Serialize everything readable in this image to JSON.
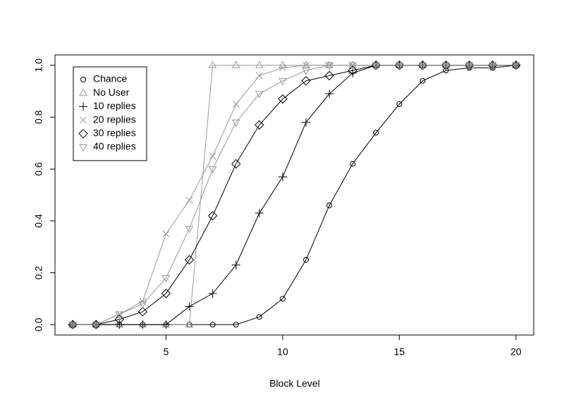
{
  "chart_data": {
    "type": "line",
    "x_label": "Block Level",
    "x": [
      1,
      2,
      3,
      4,
      5,
      6,
      7,
      8,
      9,
      10,
      11,
      12,
      13,
      14,
      15,
      16,
      17,
      18,
      19,
      20
    ],
    "xlim": [
      0.24,
      20.76
    ],
    "xticks": [
      5,
      10,
      15,
      20
    ],
    "ylim": [
      -0.04,
      1.04
    ],
    "yticks": [
      {
        "value": 0,
        "label": "0.0"
      },
      {
        "value": 0.2,
        "label": "0.2"
      },
      {
        "value": 0.4,
        "label": "0.4"
      },
      {
        "value": 0.6,
        "label": "0.6"
      },
      {
        "value": 0.8,
        "label": "0.8"
      },
      {
        "value": 1,
        "label": "1.0"
      }
    ],
    "legend": "top-left",
    "series": [
      {
        "name": "Chance",
        "color": "#000000",
        "marker": "circle",
        "values": [
          0,
          0,
          0,
          0,
          0,
          0,
          0,
          0,
          0.03,
          0.1,
          0.25,
          0.46,
          0.62,
          0.74,
          0.85,
          0.94,
          0.98,
          0.99,
          0.99,
          1
        ]
      },
      {
        "name": "No User",
        "color": "#999999",
        "marker": "triangle",
        "values": [
          0,
          0,
          0,
          0,
          0,
          0,
          1,
          1,
          1,
          1,
          1,
          1,
          1,
          1,
          1,
          1,
          1,
          1,
          1,
          1
        ]
      },
      {
        "name": "10 replies",
        "color": "#000000",
        "marker": "plus",
        "values": [
          0,
          0,
          0,
          0,
          0,
          0.07,
          0.12,
          0.23,
          0.43,
          0.57,
          0.78,
          0.89,
          0.97,
          1,
          1,
          1,
          1,
          1,
          1,
          1
        ]
      },
      {
        "name": "20 replies",
        "color": "#999999",
        "marker": "cross",
        "values": [
          0,
          0,
          0.04,
          0.09,
          0.35,
          0.48,
          0.65,
          0.85,
          0.96,
          0.99,
          1,
          1,
          1,
          1,
          1,
          1,
          1,
          1,
          1,
          1
        ]
      },
      {
        "name": "30 replies",
        "color": "#000000",
        "marker": "diamond",
        "values": [
          0,
          0,
          0.02,
          0.05,
          0.12,
          0.25,
          0.42,
          0.62,
          0.77,
          0.87,
          0.94,
          0.96,
          0.98,
          1,
          1,
          1,
          1,
          1,
          1,
          1
        ]
      },
      {
        "name": "40 replies",
        "color": "#999999",
        "marker": "triangle-down",
        "values": [
          0,
          0,
          0.04,
          0.08,
          0.18,
          0.37,
          0.6,
          0.78,
          0.89,
          0.94,
          0.98,
          1,
          1,
          1,
          1,
          1,
          1,
          1,
          1,
          1
        ]
      }
    ]
  }
}
